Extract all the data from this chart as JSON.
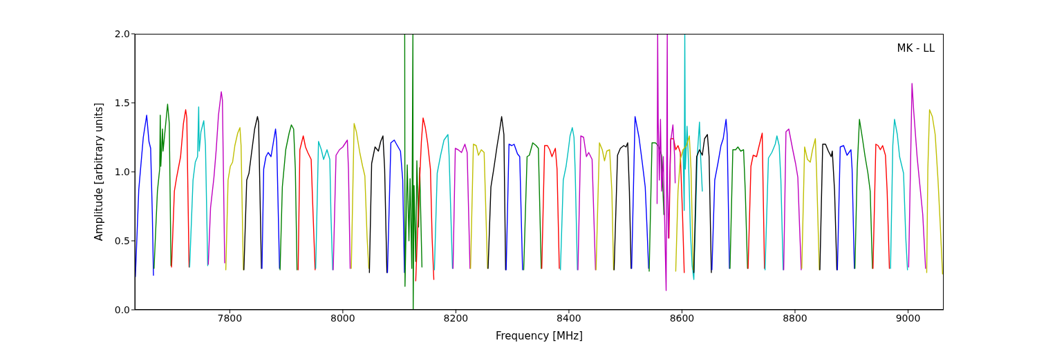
{
  "chart_data": {
    "type": "line",
    "xlabel": "Frequency [MHz]",
    "ylabel": "Amplitude [arbitrary units]",
    "annotations": [
      "MK - LL"
    ],
    "xlim": [
      7632,
      9063
    ],
    "xticks": [
      7800,
      8000,
      8200,
      8400,
      8600,
      8800,
      9000
    ],
    "ylim": [
      0,
      2
    ],
    "yticks": [
      {
        "value": 0,
        "label": "0.0"
      },
      {
        "value": 0.5,
        "label": "0.5"
      },
      {
        "value": 1,
        "label": "1.0"
      },
      {
        "value": 1.5,
        "label": "1.5"
      },
      {
        "value": 2,
        "label": "2.0"
      }
    ],
    "grid": false,
    "legend": false,
    "series": [
      {
        "color": "#0000ff",
        "x": [
          7633,
          7639,
          7647,
          7653,
          7657,
          7660,
          7663,
          7665
        ],
        "values": [
          0.24,
          0.87,
          1.25,
          1.41,
          1.22,
          1.17,
          0.69,
          0.25
        ]
      },
      {
        "color": "#008000",
        "x": [
          7666,
          7672,
          7676,
          7677,
          7678,
          7681,
          7682,
          7686,
          7690,
          7693,
          7696
        ],
        "values": [
          0.3,
          0.86,
          1.02,
          1.41,
          1.04,
          1.31,
          1.15,
          1.32,
          1.49,
          1.35,
          0.32
        ]
      },
      {
        "color": "#ff0000",
        "x": [
          7697,
          7702,
          7706,
          7713,
          7718,
          7722,
          7724,
          7728
        ],
        "values": [
          0.31,
          0.86,
          0.96,
          1.11,
          1.35,
          1.45,
          1.39,
          0.31
        ]
      },
      {
        "color": "#00bfbf",
        "x": [
          7729,
          7735,
          7739,
          7743,
          7745,
          7746,
          7749,
          7754,
          7757,
          7761
        ],
        "values": [
          0.31,
          0.94,
          1.07,
          1.11,
          1.47,
          1.15,
          1.29,
          1.37,
          1.19,
          0.32
        ]
      },
      {
        "color": "#bf00bf",
        "x": [
          7762,
          7766,
          7772,
          7776,
          7780,
          7785,
          7787,
          7791
        ],
        "values": [
          0.33,
          0.74,
          0.96,
          1.16,
          1.41,
          1.58,
          1.52,
          0.34
        ]
      },
      {
        "color": "#bfbf00",
        "x": [
          7793,
          7797,
          7801,
          7805,
          7809,
          7814,
          7818,
          7820,
          7824
        ],
        "values": [
          0.29,
          0.94,
          1.04,
          1.07,
          1.19,
          1.28,
          1.32,
          1.19,
          0.29
        ]
      },
      {
        "color": "#000000",
        "x": [
          7825,
          7830,
          7834,
          7838,
          7844,
          7849,
          7851,
          7856
        ],
        "values": [
          0.29,
          0.94,
          0.99,
          1.12,
          1.31,
          1.4,
          1.36,
          0.3
        ]
      },
      {
        "color": "#0000ff",
        "x": [
          7857,
          7860,
          7864,
          7868,
          7873,
          7877,
          7881,
          7883,
          7888
        ],
        "values": [
          0.3,
          1.02,
          1.11,
          1.14,
          1.11,
          1.21,
          1.31,
          1.22,
          0.3
        ]
      },
      {
        "color": "#008000",
        "x": [
          7889,
          7893,
          7899,
          7905,
          7909,
          7913,
          7916,
          7919
        ],
        "values": [
          0.29,
          0.89,
          1.16,
          1.28,
          1.34,
          1.31,
          1.02,
          0.29
        ]
      },
      {
        "color": "#ff0000",
        "x": [
          7921,
          7924,
          7930,
          7934,
          7938,
          7944,
          7946,
          7951
        ],
        "values": [
          0.29,
          1.16,
          1.26,
          1.18,
          1.14,
          1.09,
          0.85,
          0.29
        ]
      },
      {
        "color": "#00bfbf",
        "x": [
          7952,
          7957,
          7962,
          7966,
          7972,
          7977,
          7979,
          7982
        ],
        "values": [
          0.3,
          1.22,
          1.16,
          1.09,
          1.16,
          1.09,
          0.69,
          0.29
        ]
      },
      {
        "color": "#bf00bf",
        "x": [
          7983,
          7988,
          7994,
          8000,
          8008,
          8010,
          8013
        ],
        "values": [
          0.29,
          1.12,
          1.16,
          1.18,
          1.23,
          1.02,
          0.3
        ]
      },
      {
        "color": "#bfbf00",
        "x": [
          8015,
          8020,
          8024,
          8030,
          8035,
          8039,
          8043,
          8046
        ],
        "values": [
          0.3,
          1.35,
          1.29,
          1.14,
          1.04,
          0.97,
          0.52,
          0.3
        ]
      },
      {
        "color": "#000000",
        "x": [
          8047,
          8051,
          8057,
          8063,
          8067,
          8071,
          8074,
          8078
        ],
        "values": [
          0.27,
          1.06,
          1.18,
          1.15,
          1.22,
          1.26,
          1.02,
          0.27
        ]
      },
      {
        "color": "#0000ff",
        "x": [
          8079,
          8085,
          8091,
          8095,
          8102,
          8106,
          8109
        ],
        "values": [
          0.27,
          1.21,
          1.23,
          1.2,
          1.15,
          0.94,
          0.27
        ]
      },
      {
        "color": "#008000",
        "x": [
          8109.5,
          8110,
          8114,
          8117,
          8119,
          8122,
          8124,
          8124.5,
          8126,
          8129,
          8131,
          8134,
          8136,
          8140
        ],
        "values": [
          2.0,
          0.17,
          1.05,
          0.5,
          0.95,
          0.3,
          2.0,
          0.0,
          0.9,
          0.35,
          1.08,
          0.6,
          1.03,
          0.31
        ]
      },
      {
        "color": "#ff0000",
        "x": [
          8129,
          8135,
          8139,
          8142,
          8146,
          8150,
          8155,
          8158,
          8161
        ],
        "values": [
          0.21,
          0.86,
          1.22,
          1.39,
          1.32,
          1.21,
          1.02,
          0.52,
          0.22
        ]
      },
      {
        "color": "#00bfbf",
        "x": [
          8162,
          8167,
          8173,
          8179,
          8186,
          8188,
          8194
        ],
        "values": [
          0.29,
          0.99,
          1.12,
          1.23,
          1.27,
          1.12,
          0.3
        ]
      },
      {
        "color": "#bf00bf",
        "x": [
          8195,
          8199,
          8204,
          8210,
          8216,
          8220,
          8225
        ],
        "values": [
          0.3,
          1.17,
          1.16,
          1.14,
          1.2,
          1.14,
          0.3
        ]
      },
      {
        "color": "#bfbf00",
        "x": [
          8226,
          8231,
          8236,
          8240,
          8245,
          8250,
          8252,
          8256
        ],
        "values": [
          0.3,
          1.2,
          1.19,
          1.12,
          1.16,
          1.14,
          0.86,
          0.3
        ]
      },
      {
        "color": "#000000",
        "x": [
          8257,
          8262,
          8267,
          8273,
          8277,
          8281,
          8285,
          8288
        ],
        "values": [
          0.3,
          0.89,
          1.02,
          1.19,
          1.29,
          1.4,
          1.27,
          0.29
        ]
      },
      {
        "color": "#0000ff",
        "x": [
          8289,
          8294,
          8299,
          8303,
          8309,
          8313,
          8318
        ],
        "values": [
          0.29,
          1.2,
          1.19,
          1.2,
          1.13,
          1.11,
          0.29
        ]
      },
      {
        "color": "#008000",
        "x": [
          8320,
          8326,
          8330,
          8336,
          8342,
          8346,
          8351
        ],
        "values": [
          0.29,
          1.11,
          1.12,
          1.21,
          1.19,
          1.17,
          0.3
        ]
      },
      {
        "color": "#ff0000",
        "x": [
          8352,
          8357,
          8362,
          8366,
          8370,
          8376,
          8379,
          8383
        ],
        "values": [
          0.3,
          1.19,
          1.19,
          1.16,
          1.11,
          1.17,
          1.02,
          0.3
        ]
      },
      {
        "color": "#00bfbf",
        "x": [
          8385,
          8390,
          8395,
          8399,
          8402,
          8406,
          8409,
          8411,
          8415
        ],
        "values": [
          0.29,
          0.94,
          1.04,
          1.16,
          1.26,
          1.32,
          1.25,
          1.02,
          0.29
        ]
      },
      {
        "color": "#bf00bf",
        "x": [
          8416,
          8421,
          8426,
          8431,
          8435,
          8441,
          8444,
          8447
        ],
        "values": [
          0.29,
          1.26,
          1.25,
          1.11,
          1.14,
          1.09,
          0.69,
          0.29
        ]
      },
      {
        "color": "#bfbf00",
        "x": [
          8448,
          8454,
          8459,
          8463,
          8467,
          8472,
          8476,
          8479
        ],
        "values": [
          0.29,
          1.21,
          1.16,
          1.08,
          1.15,
          1.16,
          0.86,
          0.29
        ]
      },
      {
        "color": "#000000",
        "x": [
          8480,
          8486,
          8491,
          8497,
          8501,
          8504,
          8507,
          8510
        ],
        "values": [
          0.29,
          1.12,
          1.17,
          1.19,
          1.18,
          1.21,
          0.86,
          0.3
        ]
      },
      {
        "color": "#0000ff",
        "x": [
          8511,
          8517,
          8524,
          8530,
          8535,
          8538,
          8541
        ],
        "values": [
          0.3,
          1.4,
          1.25,
          1.06,
          0.89,
          0.61,
          0.3
        ]
      },
      {
        "color": "#008000",
        "x": [
          8542,
          8547,
          8553,
          8558,
          8564,
          8568
        ],
        "values": [
          0.28,
          1.21,
          1.21,
          1.19,
          1.12,
          0.69
        ]
      },
      {
        "color": "#ff0000",
        "x": [
          8577,
          8580,
          8585,
          8589,
          8593,
          8597,
          8601,
          8604
        ],
        "values": [
          0.52,
          1.24,
          1.24,
          1.16,
          1.19,
          1.14,
          0.69,
          0.27
        ]
      },
      {
        "color": "#00bfbf",
        "x": [
          8602,
          8604,
          8605,
          8606,
          8609,
          8612,
          8615,
          8618,
          8621,
          8623,
          8627,
          8631,
          8633,
          8636
        ],
        "values": [
          1.16,
          0.72,
          2.0,
          1.02,
          1.33,
          1.02,
          0.56,
          0.32,
          0.22,
          0.52,
          1.11,
          1.36,
          1.11,
          0.86
        ]
      },
      {
        "color": "#bf00bf",
        "x": [
          8556,
          8557,
          8558,
          8560,
          8562,
          8564,
          8567,
          8570,
          8572,
          8574,
          8574.5,
          8576,
          8580,
          8584,
          8587,
          8588
        ],
        "values": [
          0.77,
          2.0,
          1.36,
          0.94,
          1.38,
          0.86,
          1.11,
          0.52,
          0.14,
          2.0,
          0.86,
          0.52,
          1.22,
          1.34,
          1.11,
          0.92
        ]
      },
      {
        "color": "#bfbf00",
        "x": [
          8589,
          8593,
          8597,
          8602,
          8608,
          8613,
          8616,
          8620
        ],
        "values": [
          0.28,
          0.86,
          1.09,
          1.16,
          1.19,
          1.26,
          1.02,
          0.29
        ]
      },
      {
        "color": "#000000",
        "x": [
          8621,
          8626,
          8631,
          8636,
          8640,
          8645,
          8648,
          8652
        ],
        "values": [
          0.27,
          1.11,
          1.16,
          1.12,
          1.24,
          1.27,
          1.11,
          0.27
        ]
      },
      {
        "color": "#0000ff",
        "x": [
          8653,
          8658,
          8664,
          8669,
          8673,
          8678,
          8680,
          8684
        ],
        "values": [
          0.29,
          0.94,
          1.07,
          1.19,
          1.24,
          1.38,
          1.27,
          0.3
        ]
      },
      {
        "color": "#008000",
        "x": [
          8685,
          8690,
          8695,
          8699,
          8704,
          8709,
          8712,
          8716
        ],
        "values": [
          0.3,
          1.16,
          1.16,
          1.18,
          1.15,
          1.16,
          0.86,
          0.3
        ]
      },
      {
        "color": "#ff0000",
        "x": [
          8717,
          8722,
          8726,
          8732,
          8736,
          8742,
          8743,
          8746
        ],
        "values": [
          0.3,
          1.04,
          1.12,
          1.11,
          1.18,
          1.28,
          1.02,
          0.3
        ]
      },
      {
        "color": "#00bfbf",
        "x": [
          8747,
          8753,
          8759,
          8765,
          8768,
          8772,
          8775,
          8779
        ],
        "values": [
          0.29,
          1.1,
          1.14,
          1.2,
          1.26,
          1.19,
          0.94,
          0.29
        ]
      },
      {
        "color": "#bf00bf",
        "x": [
          8780,
          8784,
          8789,
          8796,
          8801,
          8805,
          8808,
          8811
        ],
        "values": [
          0.29,
          1.29,
          1.31,
          1.16,
          1.06,
          0.96,
          0.61,
          0.29
        ]
      },
      {
        "color": "#bfbf00",
        "x": [
          8812,
          8817,
          8822,
          8827,
          8831,
          8836,
          8838,
          8843
        ],
        "values": [
          0.3,
          1.18,
          1.09,
          1.07,
          1.16,
          1.24,
          1.02,
          0.29
        ]
      },
      {
        "color": "#000000",
        "x": [
          8844,
          8849,
          8854,
          8859,
          8864,
          8866,
          8870,
          8874
        ],
        "values": [
          0.29,
          1.2,
          1.2,
          1.15,
          1.11,
          1.15,
          0.86,
          0.29
        ]
      },
      {
        "color": "#0000ff",
        "x": [
          8875,
          8880,
          8886,
          8892,
          8899,
          8901,
          8905
        ],
        "values": [
          0.29,
          1.18,
          1.19,
          1.12,
          1.16,
          1.02,
          0.3
        ]
      },
      {
        "color": "#008000",
        "x": [
          8906,
          8910,
          8914,
          8919,
          8924,
          8929,
          8933,
          8937
        ],
        "values": [
          0.3,
          1.02,
          1.38,
          1.25,
          1.11,
          0.99,
          0.86,
          0.3
        ]
      },
      {
        "color": "#ff0000",
        "x": [
          8938,
          8943,
          8947,
          8951,
          8955,
          8960,
          8963,
          8967
        ],
        "values": [
          0.3,
          1.2,
          1.19,
          1.16,
          1.19,
          1.12,
          0.86,
          0.3
        ]
      },
      {
        "color": "#00bfbf",
        "x": [
          8969,
          8973,
          8976,
          8981,
          8985,
          8992,
          8996,
          8999
        ],
        "values": [
          0.3,
          1.19,
          1.38,
          1.27,
          1.11,
          0.99,
          0.52,
          0.29
        ]
      },
      {
        "color": "#bf00bf",
        "x": [
          9001,
          9005,
          9007,
          9010,
          9016,
          9020,
          9026,
          9031
        ],
        "values": [
          0.31,
          1.19,
          1.64,
          1.44,
          1.11,
          0.94,
          0.69,
          0.3
        ]
      },
      {
        "color": "#bfbf00",
        "x": [
          9033,
          9035,
          9038,
          9043,
          9048,
          9053,
          9057,
          9061
        ],
        "values": [
          0.27,
          1.02,
          1.45,
          1.4,
          1.27,
          0.94,
          0.61,
          0.26
        ]
      }
    ]
  }
}
